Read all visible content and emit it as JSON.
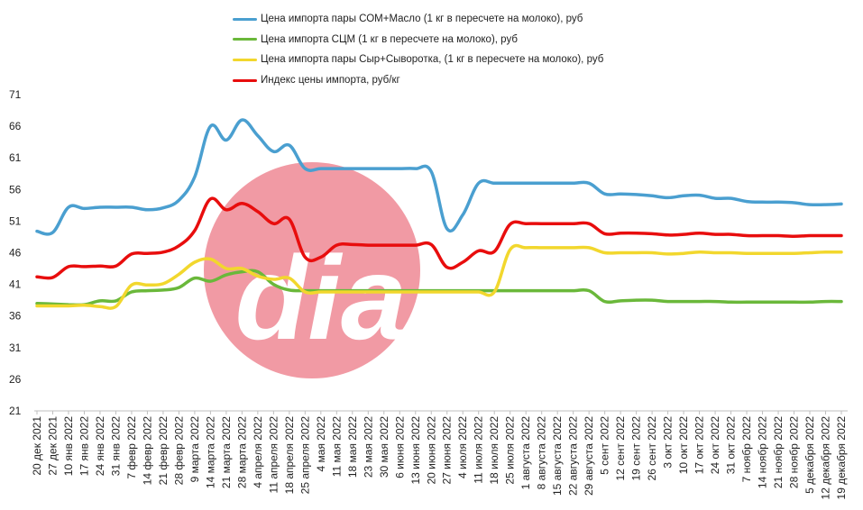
{
  "chart_data": {
    "type": "line",
    "ylim": [
      21,
      71
    ],
    "yticks": [
      21,
      26,
      31,
      36,
      41,
      46,
      51,
      56,
      61,
      66,
      71
    ],
    "grid": false,
    "legend_position": "top",
    "categories": [
      "20 дек 2021",
      "27 дек 2021",
      "10 янв 2022",
      "17 янв 2022",
      "24 янв 2022",
      "31 янв 2022",
      "7 февр 2022",
      "14 февр 2022",
      "21 февр 2022",
      "28 февр 2022",
      "9 марта 2022",
      "14 марта 2022",
      "21 марта 2022",
      "28 марта 2022",
      "4 апреля 2022",
      "11 апреля 2022",
      "18 апреля 2022",
      "25 апреля 2022",
      "4 мая 2022",
      "11 мая 2022",
      "18 мая 2022",
      "23 мая 2022",
      "30 мая 2022",
      "6 июня 2022",
      "13 июня 2022",
      "20 июня 2022",
      "27 июня 2022",
      "4 июля 2022",
      "11 июля 2022",
      "18 июля 2022",
      "25 июля 2022",
      "1 августа 2022",
      "8 августа 2022",
      "15 августа 2022",
      "22 августа 2022",
      "29 августа 2022",
      "5 сент 2022",
      "12 сент 2022",
      "19 сент 2022",
      "26 сент 2022",
      "3 окт 2022",
      "10 окт 2022",
      "17 окт 2022",
      "24 окт 2022",
      "31 окт 2022",
      "7 ноябр 2022",
      "14 ноябр 2022",
      "21 ноябр 2022",
      "28 ноябр 2022",
      "5 декабря 2022",
      "12 декабря 2022",
      "19 декабря 2022"
    ],
    "series": [
      {
        "name": "Цена импорта пары СОМ+Масло  (1 кг в пересчете на молоко), руб",
        "color": "#4a9fd0",
        "values": [
          49.4,
          49.2,
          53.2,
          53.0,
          53.2,
          53.2,
          53.2,
          52.8,
          53.1,
          54.3,
          58.0,
          66.0,
          63.8,
          67.0,
          64.5,
          62.0,
          63.0,
          59.3,
          59.3,
          59.3,
          59.3,
          59.3,
          59.3,
          59.3,
          59.3,
          58.8,
          49.8,
          52.0,
          57.0,
          57.0,
          57.0,
          57.0,
          57.0,
          57.0,
          57.0,
          57.0,
          55.3,
          55.3,
          55.2,
          55.0,
          54.7,
          55.0,
          55.1,
          54.6,
          54.6,
          54.1,
          54.0,
          54.0,
          53.9,
          53.6,
          53.6,
          53.7
        ]
      },
      {
        "name": "Цена импорта СЦМ (1 кг в пересчете на молоко), руб",
        "color": "#6ab83a",
        "values": [
          38.0,
          37.9,
          37.8,
          37.8,
          38.4,
          38.4,
          39.8,
          40.0,
          40.1,
          40.5,
          42.0,
          41.5,
          42.5,
          43.0,
          43.0,
          41.0,
          40.1,
          40.0,
          40.0,
          40.0,
          40.0,
          40.0,
          40.0,
          40.0,
          40.0,
          40.0,
          40.0,
          40.0,
          40.0,
          40.0,
          40.0,
          40.0,
          40.0,
          40.0,
          40.0,
          40.0,
          38.3,
          38.4,
          38.5,
          38.5,
          38.3,
          38.3,
          38.3,
          38.3,
          38.2,
          38.2,
          38.2,
          38.2,
          38.2,
          38.2,
          38.3,
          38.3
        ]
      },
      {
        "name": "Цена импорта пары Сыр+Сыворотка, (1 кг в пересчете на молоко), руб",
        "color": "#f2d72d",
        "values": [
          37.6,
          37.6,
          37.6,
          37.7,
          37.5,
          37.5,
          40.9,
          40.9,
          41.1,
          42.6,
          44.5,
          45.0,
          43.5,
          43.5,
          42.3,
          41.8,
          42.0,
          39.8,
          39.8,
          39.8,
          39.8,
          39.8,
          39.8,
          39.8,
          39.8,
          39.8,
          39.8,
          39.8,
          39.8,
          39.8,
          46.5,
          46.8,
          46.8,
          46.8,
          46.8,
          46.8,
          46.0,
          46.0,
          46.0,
          46.0,
          45.8,
          45.9,
          46.1,
          46.0,
          46.0,
          45.9,
          45.9,
          45.9,
          45.9,
          46.0,
          46.1,
          46.1
        ]
      },
      {
        "name": "Индекс цены импорта, руб/кг",
        "color": "#e80d0d",
        "values": [
          42.2,
          42.1,
          43.8,
          43.8,
          43.9,
          43.9,
          45.8,
          45.9,
          46.1,
          47.1,
          49.5,
          54.5,
          52.8,
          53.8,
          52.5,
          50.6,
          51.3,
          45.3,
          45.3,
          47.2,
          47.3,
          47.2,
          47.2,
          47.2,
          47.2,
          47.3,
          43.7,
          44.5,
          46.3,
          46.2,
          50.5,
          50.6,
          50.6,
          50.6,
          50.6,
          50.6,
          49.0,
          49.1,
          49.1,
          49.0,
          48.8,
          48.9,
          49.1,
          48.9,
          48.9,
          48.7,
          48.7,
          48.7,
          48.6,
          48.7,
          48.7,
          48.7
        ]
      }
    ]
  }
}
